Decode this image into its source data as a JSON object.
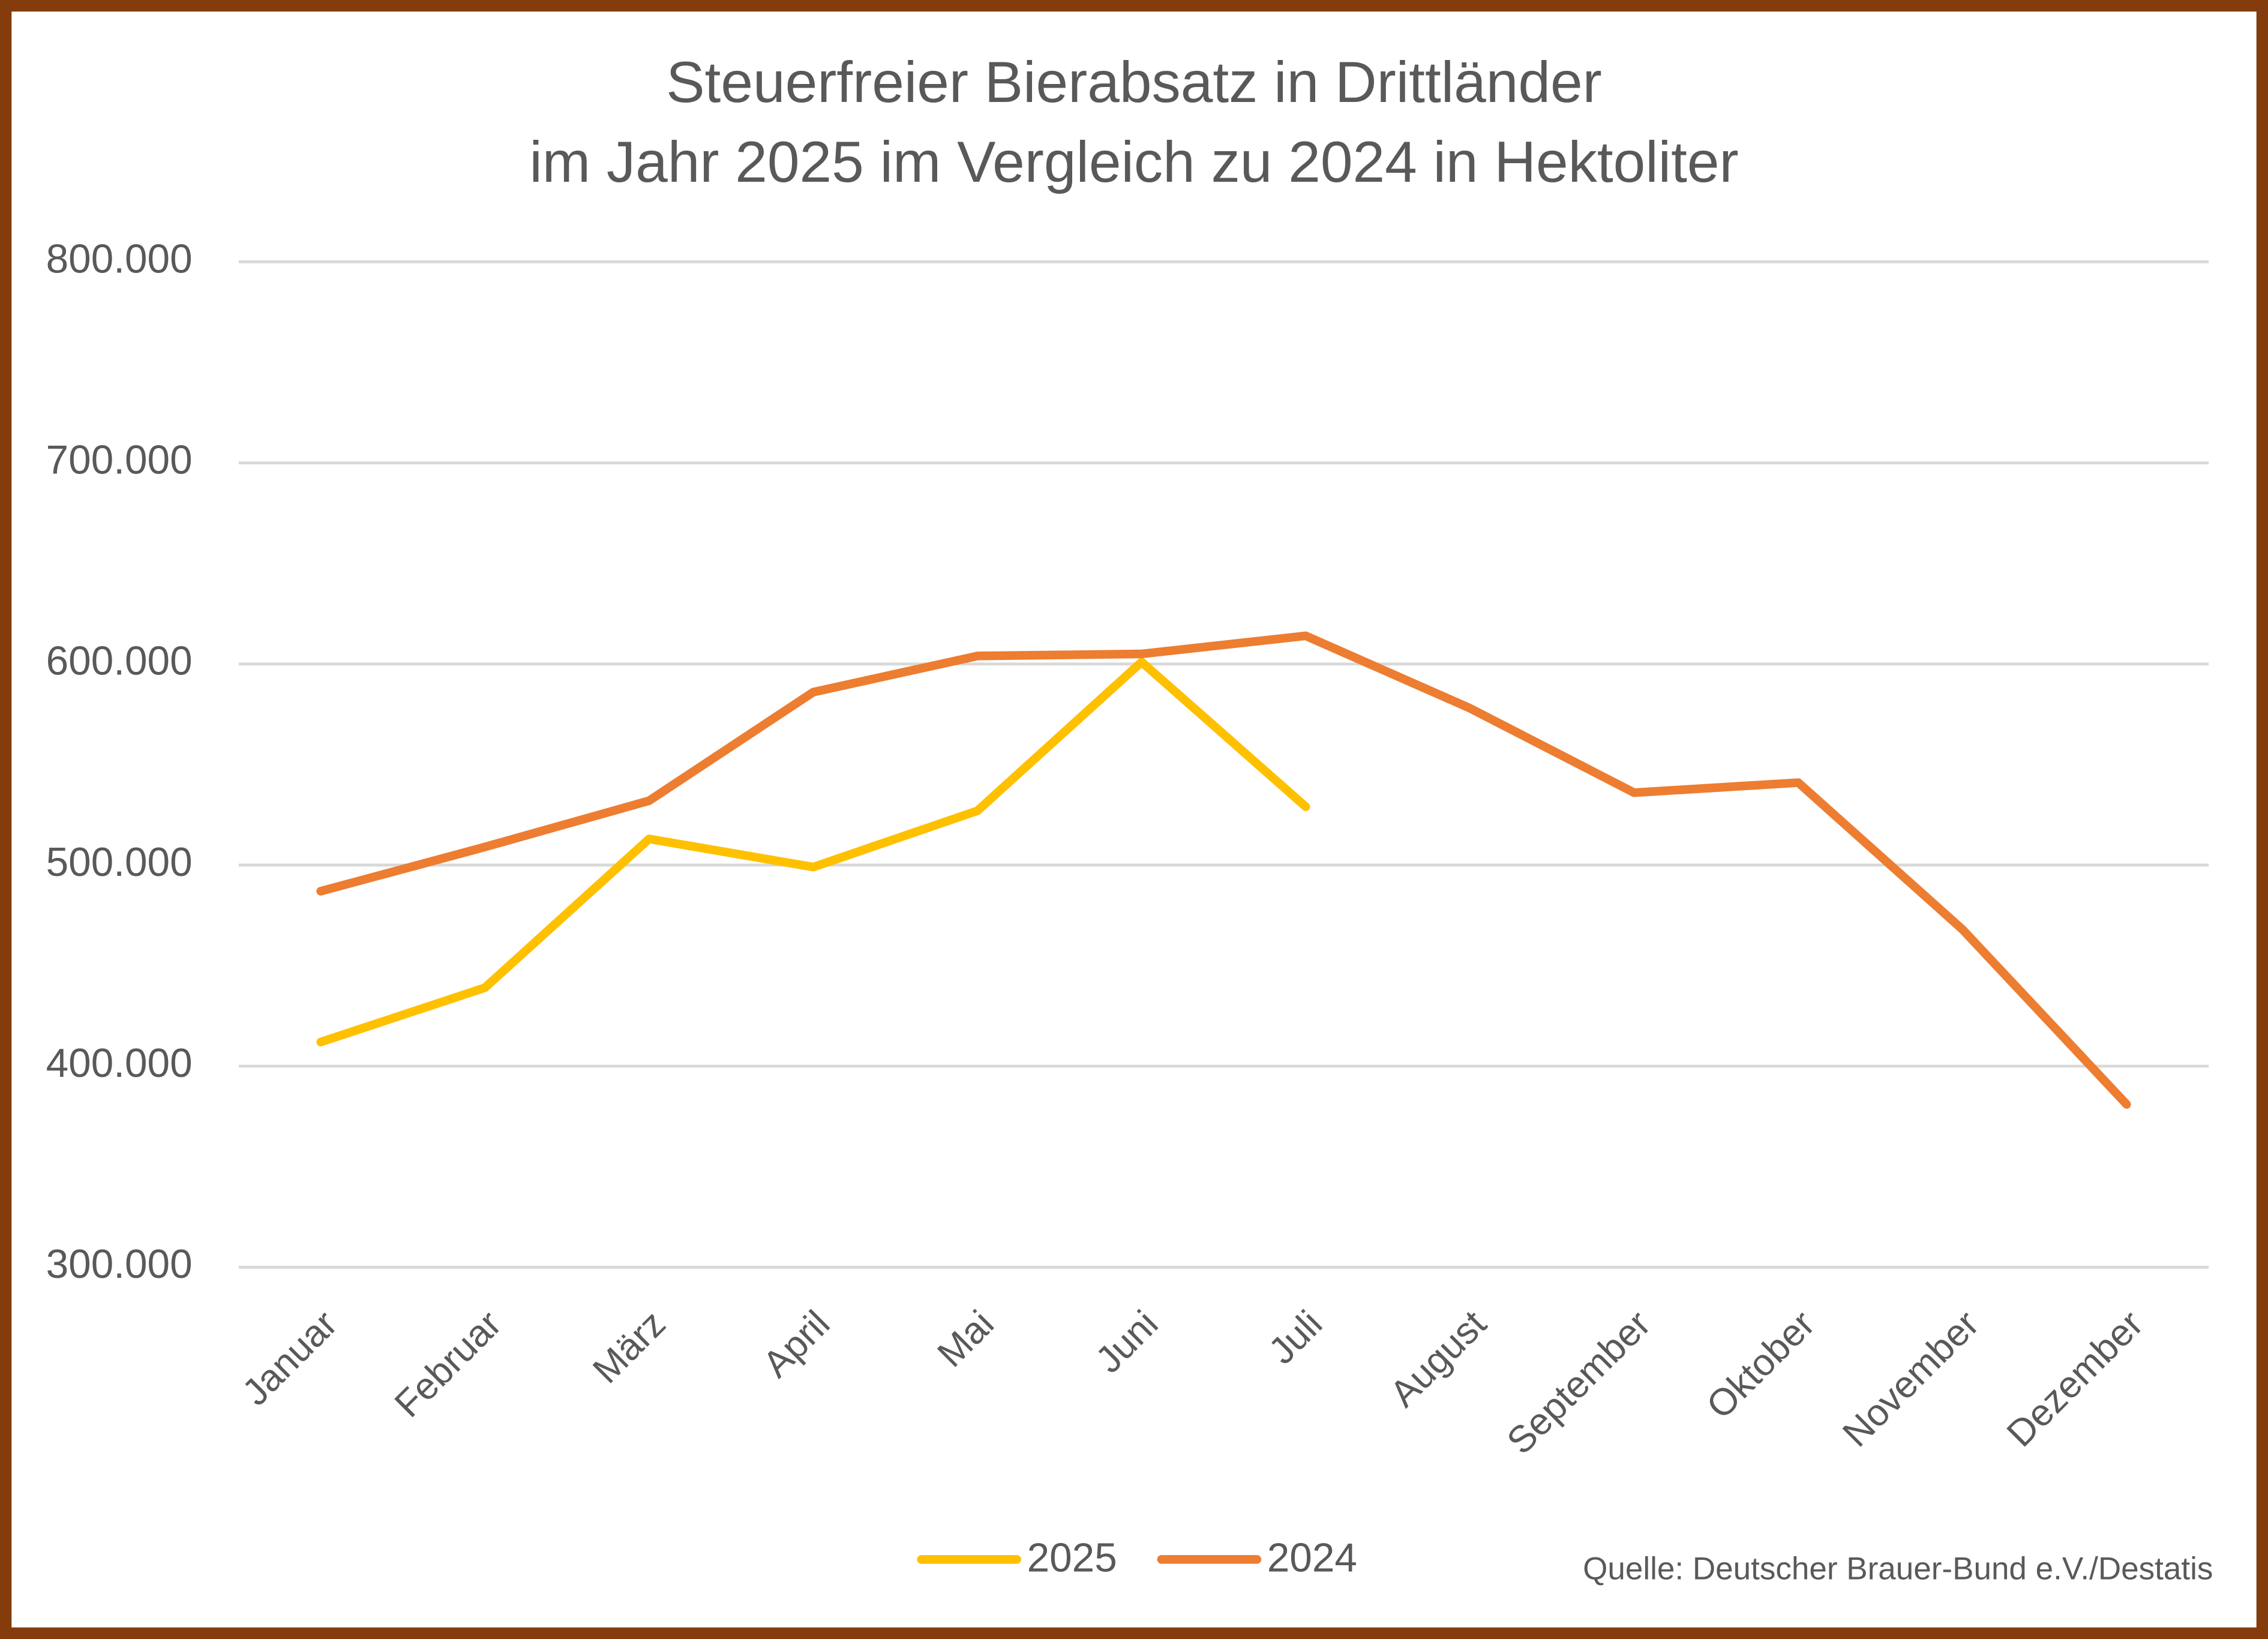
{
  "chart_data": {
    "type": "line",
    "title": [
      "Steuerfreier Bierabsatz in Drittländer",
      "im Jahr 2025 im Vergleich zu 2024 in Hektoliter"
    ],
    "categories": [
      "Januar",
      "Februar",
      "März",
      "April",
      "Mai",
      "Juni",
      "Juli",
      "August",
      "September",
      "Oktober",
      "November",
      "Dezember"
    ],
    "series": [
      {
        "name": "2025",
        "color": "#ffc000",
        "values": [
          412000,
          439000,
          513000,
          499000,
          527000,
          601000,
          529000,
          null,
          null,
          null,
          null,
          null
        ]
      },
      {
        "name": "2024",
        "color": "#ed7d31",
        "values": [
          487000,
          509000,
          532000,
          586000,
          604000,
          605000,
          614000,
          578000,
          536000,
          541000,
          468000,
          381000
        ]
      }
    ],
    "ylim": [
      300000,
      800000
    ],
    "yticks": [
      {
        "value": 300000,
        "label": "300.000"
      },
      {
        "value": 400000,
        "label": "400.000"
      },
      {
        "value": 500000,
        "label": "500.000"
      },
      {
        "value": 600000,
        "label": "600.000"
      },
      {
        "value": 700000,
        "label": "700.000"
      },
      {
        "value": 800000,
        "label": "800.000"
      }
    ],
    "grid": true,
    "legend": "bottom",
    "source": "Quelle: Deutscher Brauer-Bund e.V./Destatis"
  }
}
